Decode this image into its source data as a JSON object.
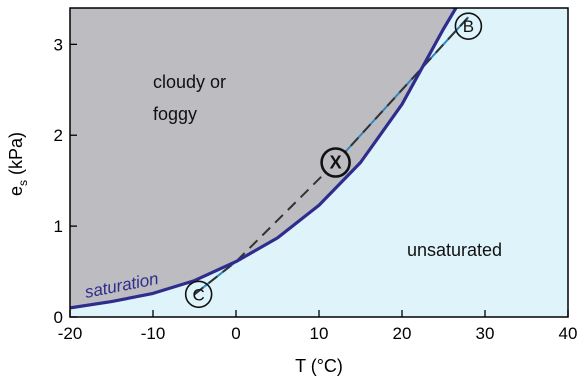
{
  "chart_data": {
    "type": "line",
    "xlabel": "T (°C)",
    "ylabel_main": "e",
    "ylabel_sub": "s",
    "ylabel_unit": " (kPa)",
    "xlim": [
      -20,
      40
    ],
    "ylim": [
      0,
      3.4
    ],
    "x_ticks": [
      -20,
      -10,
      0,
      10,
      20,
      30,
      40
    ],
    "y_ticks": [
      0,
      1,
      2,
      3
    ],
    "series": [
      {
        "name": "saturation",
        "x": [
          -20,
          -15,
          -10,
          -5,
          0,
          5,
          10,
          15,
          20,
          25,
          26.5
        ],
        "y": [
          0.1,
          0.17,
          0.26,
          0.4,
          0.61,
          0.87,
          1.23,
          1.7,
          2.34,
          3.17,
          3.4
        ]
      },
      {
        "name": "",
        "style": "dashed",
        "x": [
          -5,
          0,
          12,
          28
        ],
        "y": [
          0.25,
          0.61,
          1.7,
          3.3
        ]
      }
    ],
    "regions": [
      {
        "label_line1": "cloudy or",
        "label_line2": "foggy"
      },
      {
        "label": "unsaturated"
      }
    ],
    "markers": [
      {
        "label": "B",
        "x": 28,
        "y": 3.2
      },
      {
        "label": "C",
        "x": -4.5,
        "y": 0.25
      },
      {
        "label": "X",
        "x": 12,
        "y": 1.7
      }
    ],
    "colors": {
      "saturated_fill": "#bdbdc1",
      "unsaturated_fill": "#dff3fb",
      "curve": "#2e2c8c",
      "dashed": "#333333",
      "dashed_ends": "#2f86c0"
    },
    "grid": false
  }
}
